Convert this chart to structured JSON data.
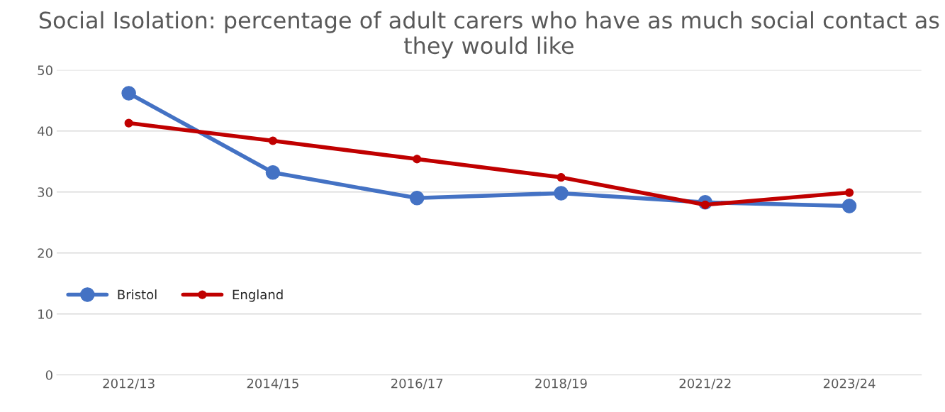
{
  "chart_data": {
    "type": "line",
    "title": "Social Isolation: percentage of adult carers who have as much social contact as they would like",
    "categories": [
      "2012/13",
      "2014/15",
      "2016/17",
      "2018/19",
      "2021/22",
      "2023/24"
    ],
    "series": [
      {
        "name": "Bristol",
        "color": "#4472c4",
        "values": [
          46.2,
          33.2,
          29.0,
          29.8,
          28.3,
          27.7
        ]
      },
      {
        "name": "England",
        "color": "#c00000",
        "values": [
          41.3,
          38.4,
          35.4,
          32.4,
          27.9,
          29.9
        ]
      }
    ],
    "ylim": [
      0,
      50
    ],
    "yticks": [
      0,
      10,
      20,
      30,
      40,
      50
    ],
    "grid": "y",
    "legend": "center left",
    "marker": "circle",
    "line_style": "solid"
  }
}
